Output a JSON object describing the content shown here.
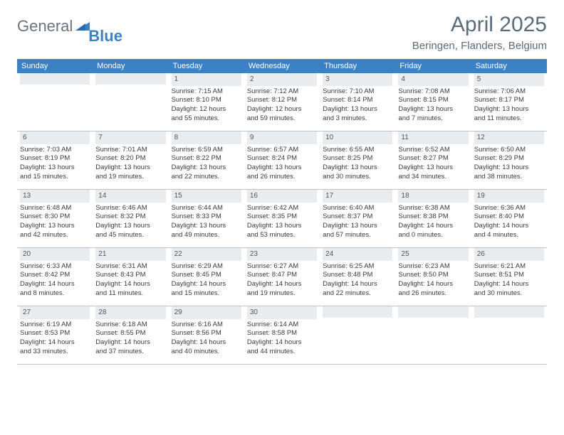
{
  "logo": {
    "word1": "General",
    "word2": "Blue"
  },
  "title": "April 2025",
  "location": "Beringen, Flanders, Belgium",
  "colors": {
    "header_bg": "#3b82c4",
    "header_text": "#ffffff",
    "daynum_bg": "#e8ecef",
    "border": "#b8c4d0",
    "body_text": "#3a3a3a",
    "title_text": "#5a6b7a"
  },
  "weekdays": [
    "Sunday",
    "Monday",
    "Tuesday",
    "Wednesday",
    "Thursday",
    "Friday",
    "Saturday"
  ],
  "weeks": [
    [
      null,
      null,
      {
        "n": "1",
        "sr": "Sunrise: 7:15 AM",
        "ss": "Sunset: 8:10 PM",
        "d1": "Daylight: 12 hours",
        "d2": "and 55 minutes."
      },
      {
        "n": "2",
        "sr": "Sunrise: 7:12 AM",
        "ss": "Sunset: 8:12 PM",
        "d1": "Daylight: 12 hours",
        "d2": "and 59 minutes."
      },
      {
        "n": "3",
        "sr": "Sunrise: 7:10 AM",
        "ss": "Sunset: 8:14 PM",
        "d1": "Daylight: 13 hours",
        "d2": "and 3 minutes."
      },
      {
        "n": "4",
        "sr": "Sunrise: 7:08 AM",
        "ss": "Sunset: 8:15 PM",
        "d1": "Daylight: 13 hours",
        "d2": "and 7 minutes."
      },
      {
        "n": "5",
        "sr": "Sunrise: 7:06 AM",
        "ss": "Sunset: 8:17 PM",
        "d1": "Daylight: 13 hours",
        "d2": "and 11 minutes."
      }
    ],
    [
      {
        "n": "6",
        "sr": "Sunrise: 7:03 AM",
        "ss": "Sunset: 8:19 PM",
        "d1": "Daylight: 13 hours",
        "d2": "and 15 minutes."
      },
      {
        "n": "7",
        "sr": "Sunrise: 7:01 AM",
        "ss": "Sunset: 8:20 PM",
        "d1": "Daylight: 13 hours",
        "d2": "and 19 minutes."
      },
      {
        "n": "8",
        "sr": "Sunrise: 6:59 AM",
        "ss": "Sunset: 8:22 PM",
        "d1": "Daylight: 13 hours",
        "d2": "and 22 minutes."
      },
      {
        "n": "9",
        "sr": "Sunrise: 6:57 AM",
        "ss": "Sunset: 8:24 PM",
        "d1": "Daylight: 13 hours",
        "d2": "and 26 minutes."
      },
      {
        "n": "10",
        "sr": "Sunrise: 6:55 AM",
        "ss": "Sunset: 8:25 PM",
        "d1": "Daylight: 13 hours",
        "d2": "and 30 minutes."
      },
      {
        "n": "11",
        "sr": "Sunrise: 6:52 AM",
        "ss": "Sunset: 8:27 PM",
        "d1": "Daylight: 13 hours",
        "d2": "and 34 minutes."
      },
      {
        "n": "12",
        "sr": "Sunrise: 6:50 AM",
        "ss": "Sunset: 8:29 PM",
        "d1": "Daylight: 13 hours",
        "d2": "and 38 minutes."
      }
    ],
    [
      {
        "n": "13",
        "sr": "Sunrise: 6:48 AM",
        "ss": "Sunset: 8:30 PM",
        "d1": "Daylight: 13 hours",
        "d2": "and 42 minutes."
      },
      {
        "n": "14",
        "sr": "Sunrise: 6:46 AM",
        "ss": "Sunset: 8:32 PM",
        "d1": "Daylight: 13 hours",
        "d2": "and 45 minutes."
      },
      {
        "n": "15",
        "sr": "Sunrise: 6:44 AM",
        "ss": "Sunset: 8:33 PM",
        "d1": "Daylight: 13 hours",
        "d2": "and 49 minutes."
      },
      {
        "n": "16",
        "sr": "Sunrise: 6:42 AM",
        "ss": "Sunset: 8:35 PM",
        "d1": "Daylight: 13 hours",
        "d2": "and 53 minutes."
      },
      {
        "n": "17",
        "sr": "Sunrise: 6:40 AM",
        "ss": "Sunset: 8:37 PM",
        "d1": "Daylight: 13 hours",
        "d2": "and 57 minutes."
      },
      {
        "n": "18",
        "sr": "Sunrise: 6:38 AM",
        "ss": "Sunset: 8:38 PM",
        "d1": "Daylight: 14 hours",
        "d2": "and 0 minutes."
      },
      {
        "n": "19",
        "sr": "Sunrise: 6:36 AM",
        "ss": "Sunset: 8:40 PM",
        "d1": "Daylight: 14 hours",
        "d2": "and 4 minutes."
      }
    ],
    [
      {
        "n": "20",
        "sr": "Sunrise: 6:33 AM",
        "ss": "Sunset: 8:42 PM",
        "d1": "Daylight: 14 hours",
        "d2": "and 8 minutes."
      },
      {
        "n": "21",
        "sr": "Sunrise: 6:31 AM",
        "ss": "Sunset: 8:43 PM",
        "d1": "Daylight: 14 hours",
        "d2": "and 11 minutes."
      },
      {
        "n": "22",
        "sr": "Sunrise: 6:29 AM",
        "ss": "Sunset: 8:45 PM",
        "d1": "Daylight: 14 hours",
        "d2": "and 15 minutes."
      },
      {
        "n": "23",
        "sr": "Sunrise: 6:27 AM",
        "ss": "Sunset: 8:47 PM",
        "d1": "Daylight: 14 hours",
        "d2": "and 19 minutes."
      },
      {
        "n": "24",
        "sr": "Sunrise: 6:25 AM",
        "ss": "Sunset: 8:48 PM",
        "d1": "Daylight: 14 hours",
        "d2": "and 22 minutes."
      },
      {
        "n": "25",
        "sr": "Sunrise: 6:23 AM",
        "ss": "Sunset: 8:50 PM",
        "d1": "Daylight: 14 hours",
        "d2": "and 26 minutes."
      },
      {
        "n": "26",
        "sr": "Sunrise: 6:21 AM",
        "ss": "Sunset: 8:51 PM",
        "d1": "Daylight: 14 hours",
        "d2": "and 30 minutes."
      }
    ],
    [
      {
        "n": "27",
        "sr": "Sunrise: 6:19 AM",
        "ss": "Sunset: 8:53 PM",
        "d1": "Daylight: 14 hours",
        "d2": "and 33 minutes."
      },
      {
        "n": "28",
        "sr": "Sunrise: 6:18 AM",
        "ss": "Sunset: 8:55 PM",
        "d1": "Daylight: 14 hours",
        "d2": "and 37 minutes."
      },
      {
        "n": "29",
        "sr": "Sunrise: 6:16 AM",
        "ss": "Sunset: 8:56 PM",
        "d1": "Daylight: 14 hours",
        "d2": "and 40 minutes."
      },
      {
        "n": "30",
        "sr": "Sunrise: 6:14 AM",
        "ss": "Sunset: 8:58 PM",
        "d1": "Daylight: 14 hours",
        "d2": "and 44 minutes."
      },
      null,
      null,
      null
    ]
  ]
}
